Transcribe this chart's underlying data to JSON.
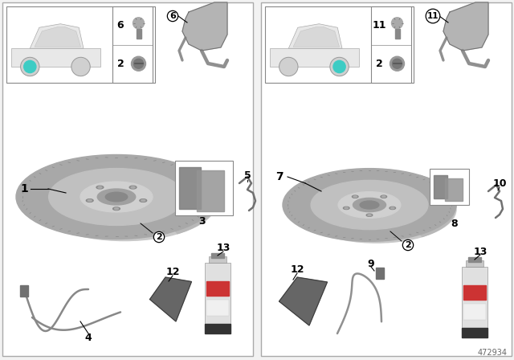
{
  "diagram_number": "472934",
  "bg_color": "#f2f2f2",
  "panel_bg": "#ffffff",
  "teal_color": "#3DCCC4",
  "gray1": "#b0b0b0",
  "gray2": "#909090",
  "gray3": "#d0d0d0",
  "gray4": "#707070",
  "gray5": "#c8c8c8",
  "dark": "#505050"
}
